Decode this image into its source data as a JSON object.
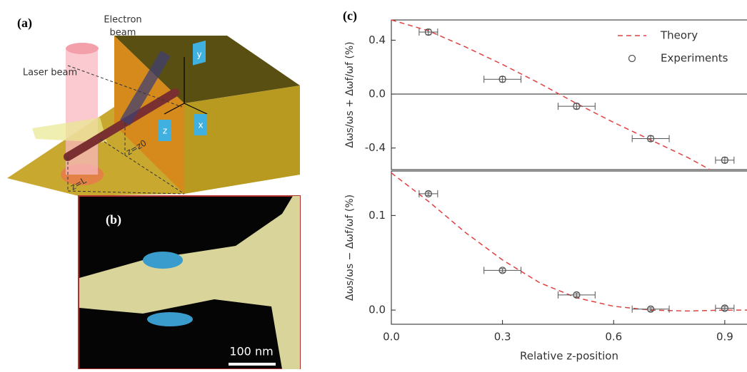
{
  "panels": {
    "a": "(a)",
    "b": "(b)",
    "c": "(c)"
  },
  "schematic": {
    "electron_beam": [
      "Electron",
      "beam"
    ],
    "laser_beam": "Laser beam",
    "axis_y": "y",
    "axis_z": "z",
    "axis_x": "x",
    "z0": "z=z0",
    "zL": "z=L"
  },
  "micrograph": {
    "scale_bar": "100 nm"
  },
  "chart_data": [
    {
      "type": "line",
      "ylabel": "Δωs/ωs + Δωf/ωf (%)",
      "xlim": [
        0,
        0.96
      ],
      "ylim": [
        -0.56,
        0.55
      ],
      "yticks": [
        0.4,
        {
          "value": 0,
          "label": "0.0"
        },
        {
          "value": -0.4,
          "label": "-0.4"
        }
      ],
      "zero_line": true,
      "legend": "top-right",
      "series": [
        {
          "name": "Theory",
          "color": "#e04040",
          "style": "dashed",
          "x": [
            0,
            0.1,
            0.2,
            0.3,
            0.4,
            0.5,
            0.6,
            0.7,
            0.8,
            0.86
          ],
          "values": [
            0.55,
            0.47,
            0.35,
            0.22,
            0.08,
            -0.07,
            -0.21,
            -0.34,
            -0.47,
            -0.56
          ]
        },
        {
          "name": "Experiments",
          "color": "#555555",
          "style": "markers",
          "x": [
            0.1,
            0.3,
            0.5,
            0.7,
            0.9
          ],
          "values": [
            0.46,
            0.11,
            -0.09,
            -0.33,
            -0.49
          ],
          "x_err": [
            0.025,
            0.05,
            0.05,
            0.05,
            0.025
          ],
          "y_err": [
            0.02,
            0.02,
            0.02,
            0.02,
            0.02
          ]
        }
      ]
    },
    {
      "type": "line",
      "ylabel": "Δωs/ωs − Δωf/ωf (%)",
      "xlabel": "Relative z-position",
      "xlim": [
        0,
        0.96
      ],
      "ylim": [
        -0.015,
        0.147
      ],
      "xticks": [
        {
          "value": 0,
          "label": "0.0"
        },
        0.3,
        0.6,
        0.9
      ],
      "yticks": [
        {
          "value": 0,
          "label": "0.0"
        },
        0.1
      ],
      "series": [
        {
          "color": "#e04040",
          "style": "dashed",
          "x": [
            0,
            0.1,
            0.2,
            0.3,
            0.4,
            0.5,
            0.6,
            0.7,
            0.8,
            0.9,
            0.96
          ],
          "values": [
            0.145,
            0.115,
            0.082,
            0.053,
            0.029,
            0.013,
            0.004,
            0.0,
            -0.001,
            0.0,
            0.0
          ]
        },
        {
          "color": "#555555",
          "style": "markers",
          "x": [
            0.1,
            0.3,
            0.5,
            0.7,
            0.9
          ],
          "values": [
            0.123,
            0.042,
            0.016,
            0.001,
            0.002
          ],
          "x_err": [
            0.025,
            0.05,
            0.05,
            0.05,
            0.025
          ],
          "y_err": [
            0.002,
            0.002,
            0.002,
            0.002,
            0.002
          ]
        }
      ]
    }
  ]
}
